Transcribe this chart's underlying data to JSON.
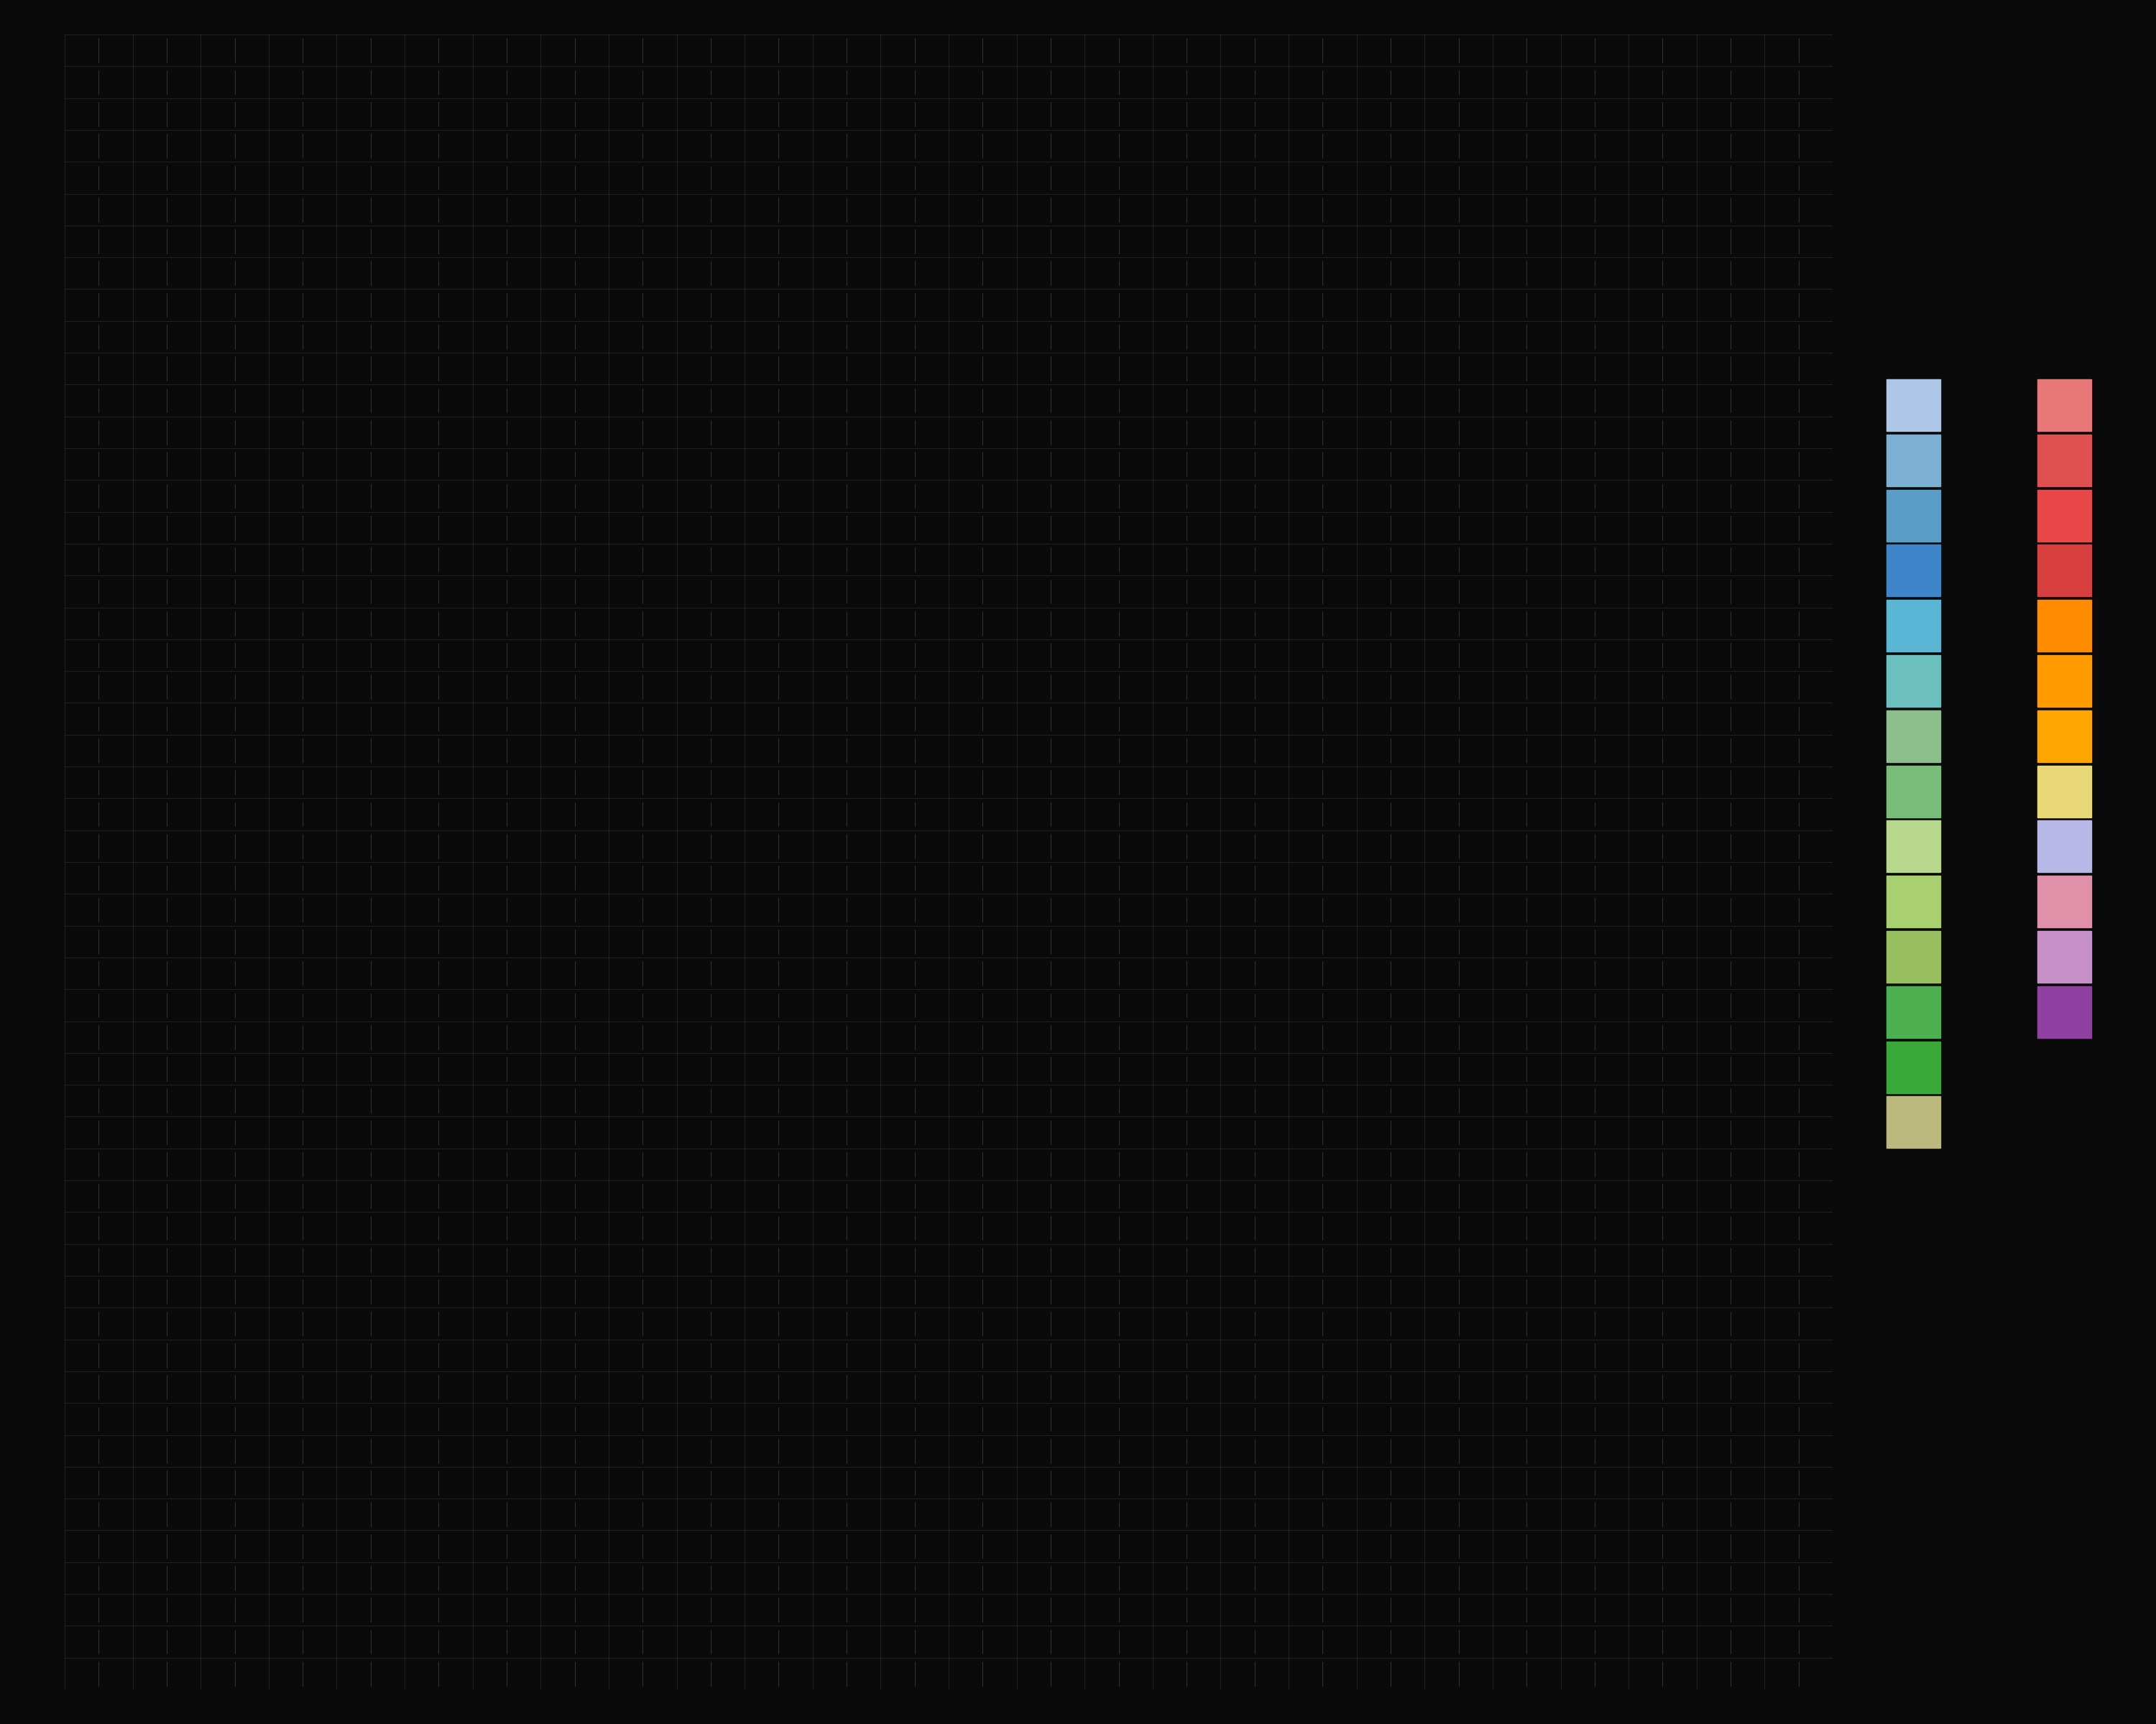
{
  "background_color": "#0a0a0a",
  "grid_color": "#2a2a2a",
  "n_clusters": 26,
  "n_genes_per_cluster": 2,
  "cluster_colors": [
    "#aec6e8",
    "#aec6e8",
    "#4c9fcf",
    "#4c9fcf",
    "#5db3d5",
    "#5db3d5",
    "#3a7ebf",
    "#3a7ebf",
    "#3a7ebf",
    "#3a7ebf",
    "#7bbf7f",
    "#7bbf7f",
    "#8cbe4f",
    "#8cbe4f",
    "#b8d98d",
    "#b8d98d",
    "#b8d98d",
    "#b8d98d",
    "#b8d98d",
    "#b8d98d",
    "#4caf50",
    "#4caf50",
    "#7fbf7f",
    "#7fbf7f",
    "#bcb97f",
    "#bcb97f",
    "#d4a57a",
    "#d4a57a",
    "#e07060",
    "#e07060",
    "#e05050",
    "#e05050",
    "#e05050",
    "#e05050",
    "#e05050",
    "#e05050",
    "#ff8c00",
    "#ff8c00",
    "#ff8c00",
    "#ff8c00",
    "#ff8c00",
    "#ff8c00",
    "#e8b87a",
    "#e8b87a",
    "#b0b0d8",
    "#b0b0d8",
    "#c8a0c8",
    "#c8a0c8",
    "#e07890",
    "#e07890",
    "#9040a0",
    "#9040a0"
  ],
  "legend_colors_left": [
    "#aec6e8",
    "#4c9fcf",
    "#5db3d5",
    "#3a7ebf",
    "#3a7ebf",
    "#7bbf7f",
    "#8cbe4f",
    "#b8d98d",
    "#b8d98d",
    "#b8d98d",
    "#4caf50",
    "#7fbf7f",
    "#bcb97f",
    "#d4a57a"
  ],
  "legend_colors_right": [
    "#e07060",
    "#e05050",
    "#e05050",
    "#e05050",
    "#ff8c00",
    "#ff8c00",
    "#ff8c00",
    "#e8b87a",
    "#b0b0d8",
    "#c8a0c8",
    "#e07890",
    "#9040a0"
  ]
}
